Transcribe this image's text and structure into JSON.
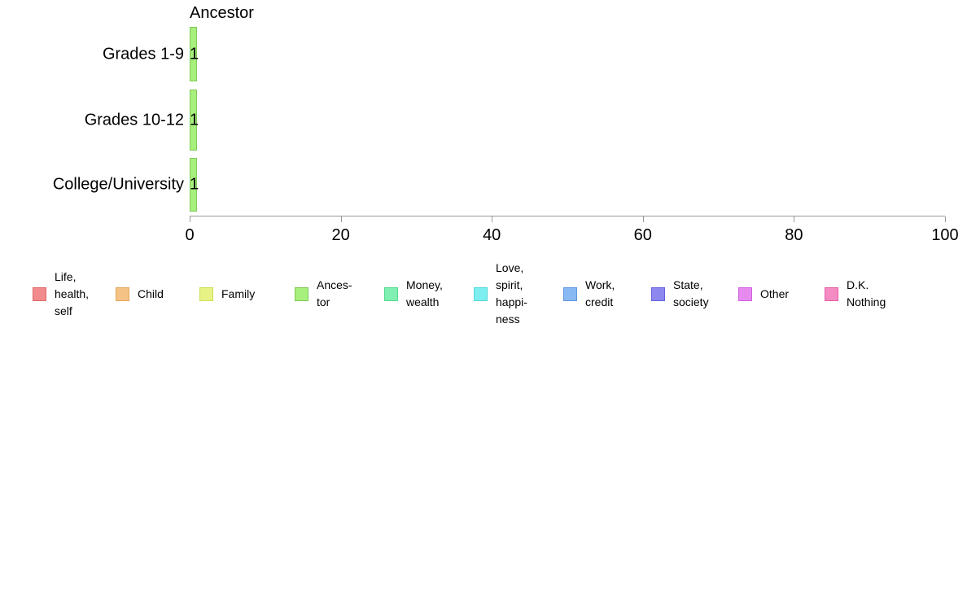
{
  "chart_data": {
    "type": "bar",
    "orientation": "horizontal",
    "title": "Ancestor",
    "categories": [
      "Grades 1-9",
      "Grades 10-12",
      "College/University"
    ],
    "values": [
      1,
      1,
      1
    ],
    "value_labels": [
      "1",
      "1",
      "1"
    ],
    "xlim": [
      0,
      100
    ],
    "xticks": [
      0,
      20,
      40,
      60,
      80,
      100
    ],
    "grid": false,
    "legend_position": "bottom",
    "axis_color": "#999999",
    "text_color": "#000000",
    "bar_color": {
      "fill": "#a7f07d",
      "border": "#7fc757"
    },
    "legend": [
      {
        "label": "Life,\nhealth,\nself",
        "fill": "#f28c8c",
        "border": "#df6a6a"
      },
      {
        "label": "Child",
        "fill": "#f5c285",
        "border": "#e3a65c"
      },
      {
        "label": "Family",
        "fill": "#e6f285",
        "border": "#ccde57"
      },
      {
        "label": "Ances-\ntor",
        "fill": "#a7f07d",
        "border": "#7fc757"
      },
      {
        "label": "Money,\nwealth",
        "fill": "#7ff0b1",
        "border": "#54d98d"
      },
      {
        "label": "Love,\nspirit,\nhappi-\nness",
        "fill": "#7eeff0",
        "border": "#52d8da"
      },
      {
        "label": "Work,\ncredit",
        "fill": "#89b9f2",
        "border": "#5f96e0"
      },
      {
        "label": "State,\nsociety",
        "fill": "#8c88f0",
        "border": "#6661de"
      },
      {
        "label": "Other",
        "fill": "#e78af0",
        "border": "#d160de"
      },
      {
        "label": "D.K.\nNothing",
        "fill": "#f48bc2",
        "border": "#e35fa5"
      }
    ]
  }
}
